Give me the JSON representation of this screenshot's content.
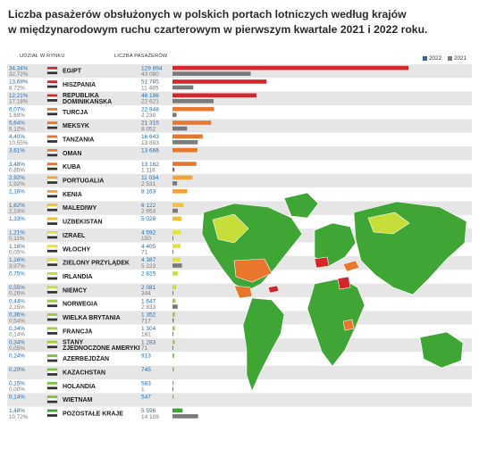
{
  "title": {
    "line1": "Liczba pasażerów obsłużonych w polskich portach lotniczych według krajów",
    "line2": "w międzynarodowym ruchu czarterowym w pierwszym kwartale 2021 i 2022 roku."
  },
  "headers": {
    "share": "UDZIAŁ W RYNKU",
    "passengers": "LICZBA PASAŻERÓW"
  },
  "colors": {
    "y2022": "#1f6db3",
    "y2021": "#7a7a7a",
    "map_green": "#3fa535",
    "map_lime": "#c7dd3a",
    "map_orange": "#e8762c",
    "map_red": "#d6262b",
    "row_odd": "#e6e6e6",
    "row_even": "#ffffff"
  },
  "chart_data": {
    "type": "bar",
    "title": "Liczba pasażerów obsłużonych w polskich portach lotniczych według krajów w międzynarodowym ruchu czarterowym w pierwszym kwartale 2021 i 2022 roku.",
    "legend": [
      "2022",
      "2021"
    ],
    "legend_position": "top-right",
    "series_names": [
      "2022",
      "2021"
    ],
    "rows": [
      {
        "country": "EGIPT",
        "share2022": "34,34%",
        "share2021": "32,72%",
        "p2022": "129 894",
        "p2021": "43 080",
        "v2022": 129894,
        "v2021": 43080,
        "bar": "#d6262b",
        "flag": "egypt-flag"
      },
      {
        "country": "HISZPANIA",
        "share2022": "13,69%",
        "share2021": "8,72%",
        "p2022": "51 785",
        "p2021": "11 485",
        "v2022": 51785,
        "v2021": 11485,
        "bar": "#d6262b",
        "flag": "spain-flag"
      },
      {
        "country": "REPUBLIKA DOMINIKAŃSKA",
        "share2022": "12,21%",
        "share2021": "17,18%",
        "p2022": "46 196",
        "p2021": "22 621",
        "v2022": 46196,
        "v2021": 22621,
        "bar": "#d6262b",
        "flag": "dominican-republic-flag"
      },
      {
        "country": "TURCJA",
        "share2022": "6,07%",
        "share2021": "1,69%",
        "p2022": "22 948",
        "p2021": "2 230",
        "v2022": 22948,
        "v2021": 2230,
        "bar": "#e8762c",
        "flag": "turkey-flag"
      },
      {
        "country": "MEKSYK",
        "share2022": "5,64%",
        "share2021": "6,12%",
        "p2022": "21 315",
        "p2021": "8 052",
        "v2022": 21315,
        "v2021": 8052,
        "bar": "#e8762c",
        "flag": "mexico-flag"
      },
      {
        "country": "TANZANIA",
        "share2022": "4,40%",
        "share2021": "10,55%",
        "p2022": "16 643",
        "p2021": "13 893",
        "v2022": 16643,
        "v2021": 13893,
        "bar": "#e8762c",
        "flag": "tanzania-flag"
      },
      {
        "country": "OMAN",
        "share2022": "3,61%",
        "share2021": "",
        "p2022": "13 666",
        "p2021": "",
        "v2022": 13666,
        "v2021": 0,
        "bar": "#e8762c",
        "flag": "oman-flag"
      },
      {
        "country": "KUBA",
        "share2022": "3,48%",
        "share2021": "0,85%",
        "p2022": "13 162",
        "p2021": "1 118",
        "v2022": 13162,
        "v2021": 1118,
        "bar": "#e8762c",
        "flag": "cuba-flag"
      },
      {
        "country": "PORTUGALIA",
        "share2022": "2,92%",
        "share2021": "1,92%",
        "p2022": "11 034",
        "p2021": "2 531",
        "v2022": 11034,
        "v2021": 2531,
        "bar": "#f0a33a",
        "flag": "portugal-flag"
      },
      {
        "country": "KENIA",
        "share2022": "2,16%",
        "share2021": "",
        "p2022": "8 163",
        "p2021": "",
        "v2022": 8163,
        "v2021": 0,
        "bar": "#f0a33a",
        "flag": "kenya-flag"
      },
      {
        "country": "MALEDIWY",
        "share2022": "1,62%",
        "share2021": "2,24%",
        "p2022": "6 122",
        "p2021": "2 953",
        "v2022": 6122,
        "v2021": 2953,
        "bar": "#f1c232",
        "flag": "maldives-flag"
      },
      {
        "country": "UZBEKISTAN",
        "share2022": "1,33%",
        "share2021": "",
        "p2022": "5 028",
        "p2021": "",
        "v2022": 5028,
        "v2021": 0,
        "bar": "#f1c232",
        "flag": "uzbekistan-flag"
      },
      {
        "country": "IZRAEL",
        "share2022": "1,21%",
        "share2021": "0,11%",
        "p2022": "4 592",
        "p2021": "150",
        "v2022": 4592,
        "v2021": 150,
        "bar": "#e3e33a",
        "flag": "israel-flag"
      },
      {
        "country": "WŁOCHY",
        "share2022": "1,16%",
        "share2021": "0,05%",
        "p2022": "4 405",
        "p2021": "71",
        "v2022": 4405,
        "v2021": 71,
        "bar": "#e3e33a",
        "flag": "italy-flag"
      },
      {
        "country": "ZIELONY PRZYLĄDEK",
        "share2022": "1,16%",
        "share2021": "3,97%",
        "p2022": "4 387",
        "p2021": "5 223",
        "v2022": 4387,
        "v2021": 5223,
        "bar": "#e3e33a",
        "flag": "cape-verde-flag"
      },
      {
        "country": "IRLANDIA",
        "share2022": "0,75%",
        "share2021": "",
        "p2022": "2 825",
        "p2021": "",
        "v2022": 2825,
        "v2021": 0,
        "bar": "#c7dd3a",
        "flag": "ireland-flag"
      },
      {
        "country": "NIEMCY",
        "share2022": "0,55%",
        "share2021": "0,26%",
        "p2022": "2 081",
        "p2021": "344",
        "v2022": 2081,
        "v2021": 344,
        "bar": "#c7dd3a",
        "flag": "germany-flag"
      },
      {
        "country": "NORWEGIA",
        "share2022": "0,44%",
        "share2021": "2,15%",
        "p2022": "1 647",
        "p2021": "2 833",
        "v2022": 1647,
        "v2021": 2833,
        "bar": "#9fcf3a",
        "flag": "norway-flag"
      },
      {
        "country": "WIELKA BRYTANIA",
        "share2022": "0,36%",
        "share2021": "0,54%",
        "p2022": "1 352",
        "p2021": "717",
        "v2022": 1352,
        "v2021": 717,
        "bar": "#9fcf3a",
        "flag": "uk-flag"
      },
      {
        "country": "FRANCJA",
        "share2022": "0,34%",
        "share2021": "0,14%",
        "p2022": "1 304",
        "p2021": "181",
        "v2022": 1304,
        "v2021": 181,
        "bar": "#9fcf3a",
        "flag": "france-flag"
      },
      {
        "country": "STANY ZJEDNOCZONE AMERYKI",
        "share2022": "0,34%",
        "share2021": "0,05%",
        "p2022": "1 283",
        "p2021": "71",
        "v2022": 1283,
        "v2021": 71,
        "bar": "#9fcf3a",
        "flag": "usa-flag"
      },
      {
        "country": "AZERBEJDŻAN",
        "share2022": "0,24%",
        "share2021": "",
        "p2022": "913",
        "p2021": "",
        "v2022": 913,
        "v2021": 0,
        "bar": "#7dc23a",
        "flag": "azerbaijan-flag"
      },
      {
        "country": "KAZACHSTAN",
        "share2022": "0,20%",
        "share2021": "",
        "p2022": "745",
        "p2021": "",
        "v2022": 745,
        "v2021": 0,
        "bar": "#7dc23a",
        "flag": "kazakhstan-flag"
      },
      {
        "country": "HOLANDIA",
        "share2022": "0,15%",
        "share2021": "0,00%",
        "p2022": "583",
        "p2021": "1",
        "v2022": 583,
        "v2021": 1,
        "bar": "#7dc23a",
        "flag": "netherlands-flag"
      },
      {
        "country": "WIETNAM",
        "share2022": "0,14%",
        "share2021": "",
        "p2022": "547",
        "p2021": "",
        "v2022": 547,
        "v2021": 0,
        "bar": "#7dc23a",
        "flag": "vietnam-flag"
      },
      {
        "country": "POZOSTAŁE KRAJE",
        "share2022": "1,48%",
        "share2021": "10,72%",
        "p2022": "5 596",
        "p2021": "14 109",
        "v2022": 5596,
        "v2021": 14109,
        "bar": "#3fa535",
        "flag": "globe-icon"
      }
    ]
  }
}
